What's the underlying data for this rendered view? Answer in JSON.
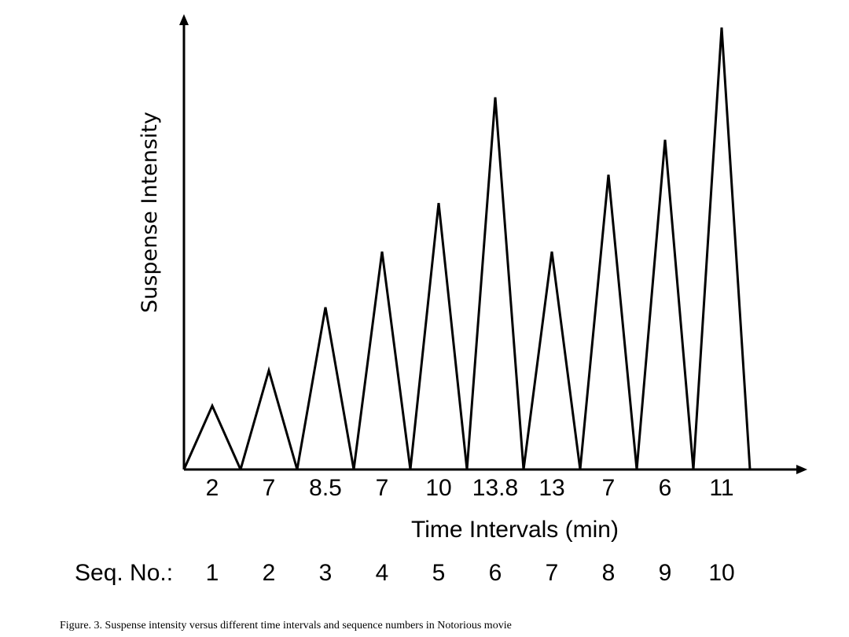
{
  "chart_data": {
    "type": "line",
    "title": "",
    "xlabel": "Time Intervals (min)",
    "ylabel": "Suspense Intensity",
    "seq_label": "Seq. No.:",
    "sequence_numbers": [
      "1",
      "2",
      "3",
      "4",
      "5",
      "6",
      "7",
      "8",
      "9",
      "10"
    ],
    "time_intervals": [
      "2",
      "7",
      "8.5",
      "7",
      "10",
      "13.8",
      "13",
      "7",
      "6",
      "11"
    ],
    "relative_peak_intensity": [
      14.4,
      22.4,
      36.7,
      49.3,
      60.3,
      84.2,
      49.3,
      66.7,
      74.6,
      100
    ],
    "ylim": [
      0,
      100
    ],
    "grid": false,
    "color": "#000000"
  },
  "caption": "Figure. 3. Suspense intensity versus different time intervals and sequence numbers in Notorious movie"
}
